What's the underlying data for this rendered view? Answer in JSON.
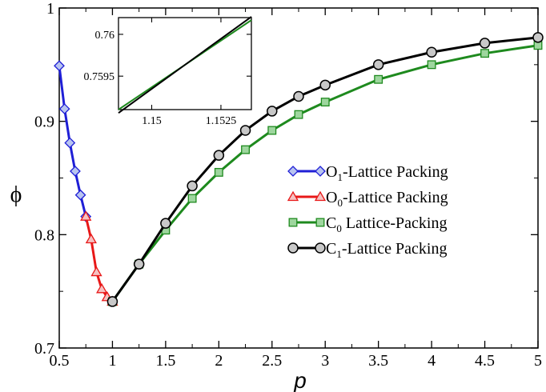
{
  "chart_data": {
    "type": "line",
    "xlabel": "p",
    "ylabel": "ϕ",
    "xlim": [
      0.5,
      5
    ],
    "ylim": [
      0.7,
      1.0
    ],
    "xticks": [
      0.5,
      1,
      1.5,
      2,
      2.5,
      3,
      3.5,
      4,
      4.5,
      5
    ],
    "xtick_labels": [
      "0.5",
      "1",
      "1.5",
      "2",
      "2.5",
      "3",
      "3.5",
      "4",
      "4.5",
      "5"
    ],
    "yticks": [
      0.7,
      0.8,
      0.9,
      1.0
    ],
    "ytick_labels": [
      "0.7",
      "0.8",
      "0.9",
      "1"
    ],
    "legend_position": "center-right",
    "series": [
      {
        "name": "O1-Lattice Packing",
        "label_main": "O",
        "label_sub": "1",
        "label_rest": "-Lattice Packing",
        "color": "#1f1fd6",
        "marker": "diamond",
        "marker_fill": "#b8c4f0",
        "x": [
          0.5,
          0.55,
          0.6,
          0.65,
          0.7,
          0.75
        ],
        "y": [
          0.949,
          0.911,
          0.881,
          0.856,
          0.835,
          0.816
        ]
      },
      {
        "name": "O0-Lattice Packing",
        "label_main": "O",
        "label_sub": "0",
        "label_rest": "-Lattice Packing",
        "color": "#e81818",
        "marker": "triangle",
        "marker_fill": "#f5c2c2",
        "x": [
          0.75,
          0.8,
          0.85,
          0.9,
          0.95,
          1.0
        ],
        "y": [
          0.816,
          0.796,
          0.767,
          0.752,
          0.745,
          0.741
        ]
      },
      {
        "name": "C0 Lattice-Packing",
        "label_main": "C",
        "label_sub": "0",
        "label_rest": " Lattice-Packing",
        "color": "#1e8a1e",
        "marker": "square",
        "marker_fill": "#9ed69e",
        "x": [
          1.0,
          1.25,
          1.5,
          1.75,
          2.0,
          2.25,
          2.5,
          2.75,
          3.0,
          3.5,
          4.0,
          4.5,
          5.0
        ],
        "y": [
          0.741,
          0.774,
          0.804,
          0.832,
          0.855,
          0.875,
          0.892,
          0.906,
          0.917,
          0.937,
          0.95,
          0.96,
          0.967
        ]
      },
      {
        "name": "C1-Lattice Packing",
        "label_main": "C",
        "label_sub": "1",
        "label_rest": "-Lattice Packing",
        "color": "#000000",
        "marker": "circle",
        "marker_fill": "#c8c8c8",
        "x": [
          1.0,
          1.25,
          1.5,
          1.75,
          2.0,
          2.25,
          2.5,
          2.75,
          3.0,
          3.5,
          4.0,
          4.5,
          5.0
        ],
        "y": [
          0.741,
          0.774,
          0.81,
          0.843,
          0.87,
          0.892,
          0.909,
          0.922,
          0.932,
          0.95,
          0.961,
          0.969,
          0.974
        ]
      }
    ],
    "inset": {
      "xlim": [
        1.1488,
        1.1536
      ],
      "ylim": [
        0.7591,
        0.7602
      ],
      "xticks": [
        1.15,
        1.1525
      ],
      "xtick_labels": [
        "1.15",
        "1.1525"
      ],
      "yticks": [
        0.7595,
        0.76
      ],
      "ytick_labels": [
        "0.7595",
        "0.76"
      ],
      "series": [
        {
          "color": "#1e8a1e",
          "x": [
            1.1488,
            1.1536
          ],
          "y": [
            0.7591,
            0.76017
          ]
        },
        {
          "color": "#000000",
          "x": [
            1.1488,
            1.1536
          ],
          "y": [
            0.75906,
            0.76021
          ]
        }
      ]
    }
  }
}
